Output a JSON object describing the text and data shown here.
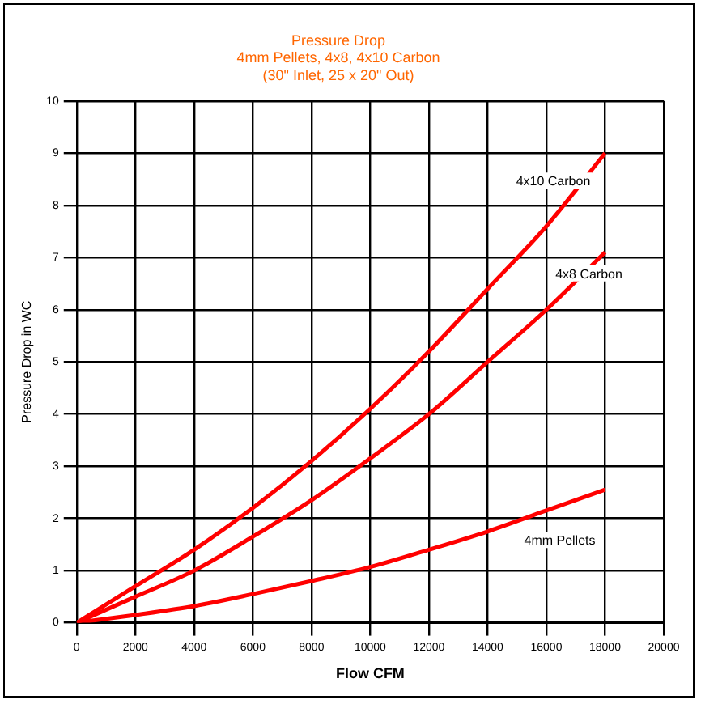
{
  "chart_data": {
    "type": "line",
    "title": [
      "Pressure Drop",
      "4mm Pellets, 4x8, 4x10 Carbon",
      "(30\" Inlet, 25 x 20\" Out)"
    ],
    "xlabel": "Flow CFM",
    "ylabel": "Pressure Drop in WC",
    "x": [
      0,
      2000,
      4000,
      6000,
      8000,
      10000,
      12000,
      14000,
      16000,
      18000
    ],
    "series": [
      {
        "name": "4x10 Carbon",
        "color": "#ff0000",
        "values": [
          0,
          0.7,
          1.4,
          2.2,
          3.1,
          4.1,
          5.2,
          6.4,
          7.6,
          9
        ]
      },
      {
        "name": "4x8 Carbon",
        "color": "#ff0000",
        "values": [
          0,
          0.5,
          1.0,
          1.65,
          2.35,
          3.15,
          4.0,
          5.0,
          6.0,
          7.1
        ]
      },
      {
        "name": "4mm Pellets",
        "color": "#ff0000",
        "values": [
          0,
          0.15,
          0.32,
          0.55,
          0.8,
          1.07,
          1.4,
          1.75,
          2.15,
          2.55
        ]
      }
    ],
    "xlim": [
      0,
      20000
    ],
    "xticks": [
      0,
      2000,
      4000,
      6000,
      8000,
      10000,
      12000,
      14000,
      16000,
      18000,
      20000
    ],
    "ylim": [
      0,
      10
    ],
    "yticks": [
      0,
      1,
      2,
      3,
      4,
      5,
      6,
      7,
      8,
      9,
      10
    ],
    "grid": true,
    "legend": false,
    "marker": "none",
    "line_style": "solid"
  }
}
